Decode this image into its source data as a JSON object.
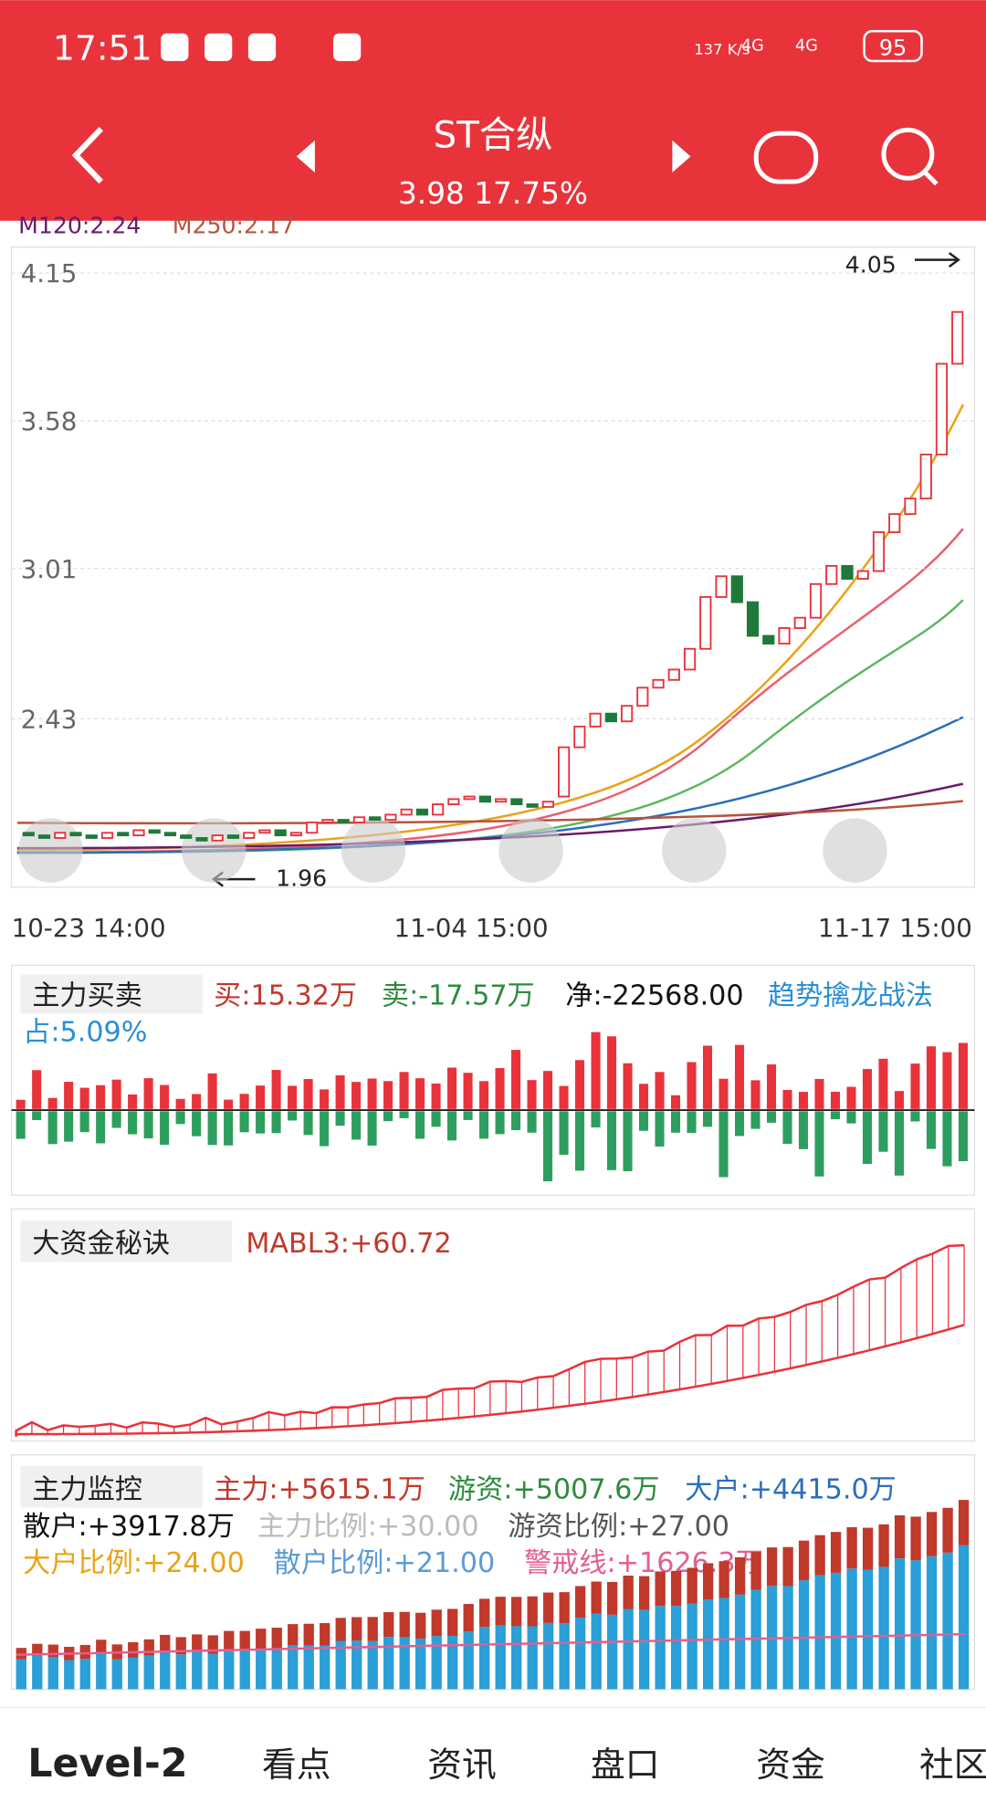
{
  "status_bar": {
    "time": "17:51",
    "speed": "137 K/s",
    "net1": "4G",
    "net2": "4G",
    "battery": "95"
  },
  "header": {
    "title": "ST合纵",
    "quote": "3.98 17.75%"
  },
  "ma_legend": [
    "M120:2.24",
    "M250:2.17"
  ],
  "kline": {
    "ylim": [
      1.78,
      4.25
    ],
    "yticks": [
      4.15,
      3.58,
      3.01,
      2.43
    ],
    "high_label": "4.05",
    "low_label": "1.96",
    "xlabels": [
      "10-23 14:00",
      "11-04 15:00",
      "11-17 15:00"
    ],
    "open": [
      1.99,
      1.98,
      1.97,
      1.99,
      1.98,
      1.97,
      1.99,
      1.98,
      2.0,
      1.99,
      1.98,
      1.97,
      1.96,
      1.98,
      1.97,
      1.99,
      2.0,
      1.98,
      1.99,
      2.03,
      2.04,
      2.03,
      2.05,
      2.04,
      2.06,
      2.08,
      2.06,
      2.1,
      2.12,
      2.13,
      2.11,
      2.12,
      2.1,
      2.09,
      2.13,
      2.32,
      2.4,
      2.45,
      2.42,
      2.48,
      2.55,
      2.58,
      2.62,
      2.7,
      2.9,
      2.98,
      2.88,
      2.75,
      2.72,
      2.78,
      2.82,
      2.95,
      3.02,
      2.97,
      3.0,
      3.15,
      3.22,
      3.28,
      3.45,
      3.8
    ],
    "close": [
      1.98,
      1.97,
      1.99,
      1.98,
      1.97,
      1.99,
      1.98,
      2.0,
      1.99,
      1.98,
      1.97,
      1.96,
      1.98,
      1.97,
      1.99,
      2.0,
      1.98,
      1.99,
      2.03,
      2.04,
      2.03,
      2.05,
      2.04,
      2.06,
      2.08,
      2.06,
      2.1,
      2.12,
      2.13,
      2.11,
      2.12,
      2.1,
      2.09,
      2.11,
      2.32,
      2.4,
      2.45,
      2.42,
      2.48,
      2.55,
      2.58,
      2.62,
      2.7,
      2.9,
      2.98,
      2.88,
      2.75,
      2.72,
      2.78,
      2.82,
      2.95,
      3.02,
      2.97,
      3.0,
      3.15,
      3.22,
      3.28,
      3.45,
      3.8,
      4.0
    ]
  },
  "panel1": {
    "name": "主力买卖",
    "buy": "买:15.32万",
    "sell": "卖:-17.57万",
    "net": "净:-22568.00",
    "strategy": "趋势擒龙战法",
    "share": "占:5.09%"
  },
  "panel2": {
    "name": "大资金秘诀",
    "value": "MABL3:+60.72"
  },
  "panel3": {
    "name": "主力监控",
    "main": "主力:+5615.1万",
    "hot": "游资:+5007.6万",
    "big": "大户:+4415.0万",
    "retail": "散户:+3917.8万",
    "main_ratio": "主力比例:+30.00",
    "hot_ratio": "游资比例:+27.00",
    "big_ratio": "大户比例:+24.00",
    "retail_ratio": "散户比例:+21.00",
    "alert": "警戒线:+1626.3万"
  },
  "tabs": [
    "Level-2",
    "看点",
    "资讯",
    "盘口",
    "资金",
    "社区"
  ]
}
